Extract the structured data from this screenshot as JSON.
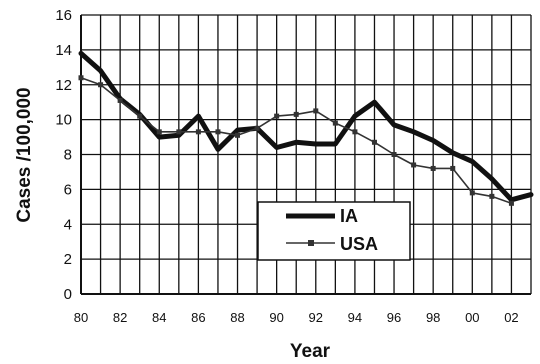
{
  "chart_data": {
    "type": "line",
    "xlabel": "Year",
    "ylabel": "Cases /100,000",
    "xlim": [
      1980,
      2003
    ],
    "ylim": [
      0,
      16
    ],
    "yticks": [
      0,
      2,
      4,
      6,
      8,
      10,
      12,
      14,
      16
    ],
    "xticks": [
      {
        "x": 1980,
        "label": "80"
      },
      {
        "x": 1982,
        "label": "82"
      },
      {
        "x": 1984,
        "label": "84"
      },
      {
        "x": 1986,
        "label": "86"
      },
      {
        "x": 1988,
        "label": "88"
      },
      {
        "x": 1990,
        "label": "90"
      },
      {
        "x": 1992,
        "label": "92"
      },
      {
        "x": 1994,
        "label": "94"
      },
      {
        "x": 1996,
        "label": "96"
      },
      {
        "x": 1998,
        "label": "98"
      },
      {
        "x": 2000,
        "label": "00"
      },
      {
        "x": 2002,
        "label": "02"
      }
    ],
    "grid": true,
    "legend_position": "bottom-center",
    "series": [
      {
        "name": "IA",
        "color": "#111111",
        "style": "thick-line",
        "points": [
          [
            1980,
            13.8
          ],
          [
            1981,
            12.8
          ],
          [
            1982,
            11.2
          ],
          [
            1983,
            10.3
          ],
          [
            1984,
            9.0
          ],
          [
            1985,
            9.1
          ],
          [
            1986,
            10.2
          ],
          [
            1987,
            8.3
          ],
          [
            1988,
            9.4
          ],
          [
            1989,
            9.5
          ],
          [
            1990,
            8.4
          ],
          [
            1991,
            8.7
          ],
          [
            1992,
            8.6
          ],
          [
            1993,
            8.6
          ],
          [
            1994,
            10.2
          ],
          [
            1995,
            11.0
          ],
          [
            1996,
            9.7
          ],
          [
            1997,
            9.3
          ],
          [
            1998,
            8.8
          ],
          [
            1999,
            8.1
          ],
          [
            2000,
            7.6
          ],
          [
            2001,
            6.6
          ],
          [
            2002,
            5.4
          ],
          [
            2003,
            5.7
          ]
        ]
      },
      {
        "name": "USA",
        "color": "#333333",
        "style": "thin-line-square-markers",
        "points": [
          [
            1980,
            12.4
          ],
          [
            1981,
            12.0
          ],
          [
            1982,
            11.1
          ],
          [
            1983,
            10.2
          ],
          [
            1984,
            9.3
          ],
          [
            1985,
            9.3
          ],
          [
            1986,
            9.3
          ],
          [
            1987,
            9.3
          ],
          [
            1988,
            9.1
          ],
          [
            1989,
            9.5
          ],
          [
            1990,
            10.2
          ],
          [
            1991,
            10.3
          ],
          [
            1992,
            10.5
          ],
          [
            1993,
            9.8
          ],
          [
            1994,
            9.3
          ],
          [
            1995,
            8.7
          ],
          [
            1996,
            8.0
          ],
          [
            1997,
            7.4
          ],
          [
            1998,
            7.2
          ],
          [
            1999,
            7.2
          ],
          [
            2000,
            5.8
          ],
          [
            2001,
            5.6
          ],
          [
            2002,
            5.2
          ]
        ]
      }
    ]
  }
}
